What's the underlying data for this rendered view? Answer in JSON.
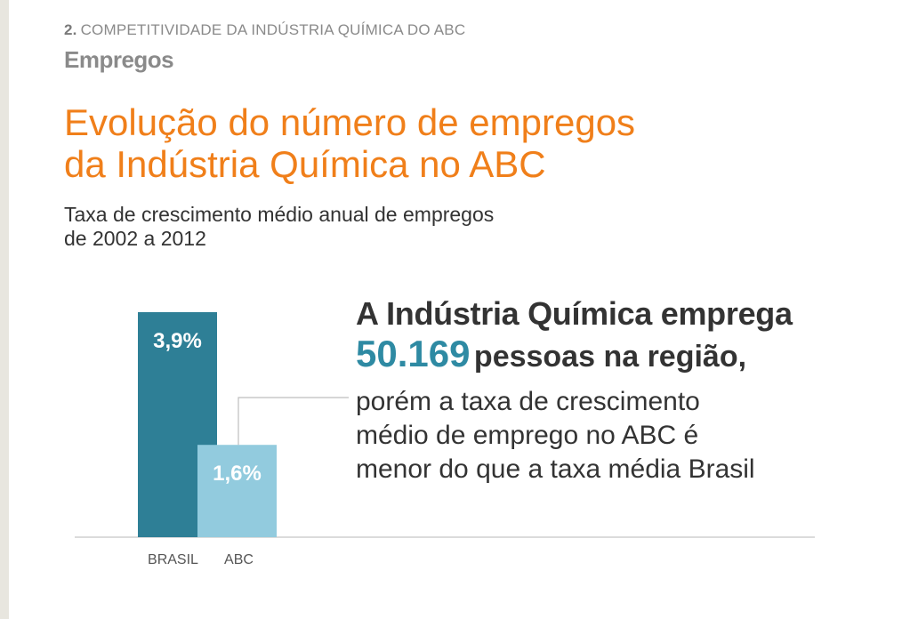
{
  "header": {
    "section_number": "2.",
    "section_label": "COMPETITIVIDADE DA INDÚSTRIA QUÍMICA DO ABC",
    "section_title": "Empregos"
  },
  "title": {
    "line1": "Evolução do número de empregos",
    "line2": "da Indústria Química no ABC"
  },
  "subtitle": {
    "line1": "Taxa de crescimento médio anual de empregos",
    "line2": "de 2002 a 2012"
  },
  "callout": {
    "line1": "A Indústria Química emprega",
    "number": "50.169",
    "line2_rest": "pessoas na região,",
    "body1": "porém a taxa de crescimento",
    "body2": "médio de emprego no ABC é",
    "body3": "menor do que a taxa média Brasil"
  },
  "colors": {
    "title": "#f07f1a",
    "bar_brasil": "#2e7f96",
    "bar_abc": "#92cbde",
    "highlight": "#2e8aa3"
  },
  "chart_data": {
    "type": "bar",
    "title": "",
    "xlabel": "",
    "ylabel": "",
    "categories": [
      "BRASIL",
      "ABC"
    ],
    "values": [
      3.9,
      1.6
    ],
    "labels": [
      "3,9%",
      "1,6%"
    ],
    "ylim": [
      0,
      3.9
    ],
    "grid": false
  }
}
